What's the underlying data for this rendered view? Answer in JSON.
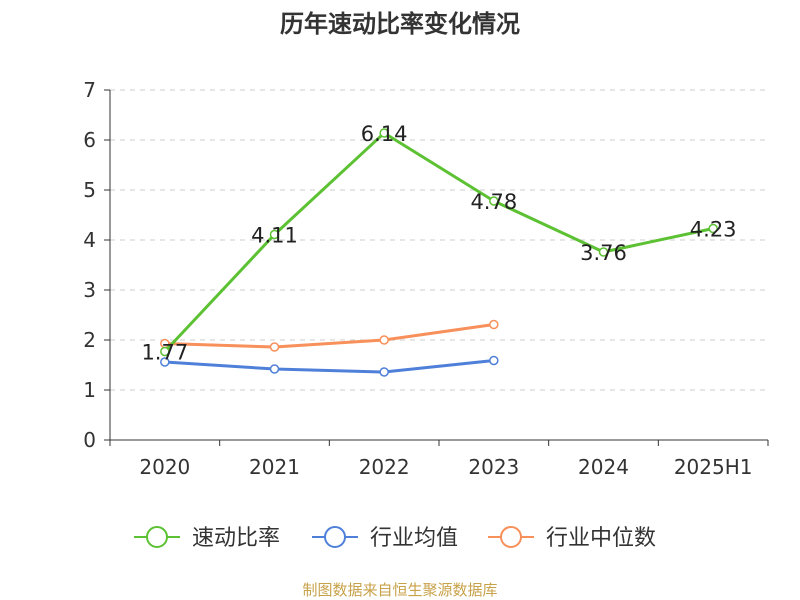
{
  "chart_data": {
    "type": "line",
    "title": "历年速动比率变化情况",
    "categories": [
      "2020",
      "2021",
      "2022",
      "2023",
      "2024",
      "2025H1"
    ],
    "ylim": [
      0,
      7
    ],
    "yticks": [
      0,
      1,
      2,
      3,
      4,
      5,
      6,
      7
    ],
    "grid": true,
    "legend_position": "bottom",
    "series": [
      {
        "name": "速动比率",
        "color": "#5cc133",
        "values": [
          1.77,
          4.11,
          6.14,
          4.78,
          3.76,
          4.23
        ],
        "labels": [
          "1.77",
          "4.11",
          "6.14",
          "4.78",
          "3.76",
          "4.23"
        ]
      },
      {
        "name": "行业均值",
        "color": "#4f80d9",
        "values": [
          1.56,
          1.42,
          1.36,
          1.59,
          null,
          null
        ]
      },
      {
        "name": "行业中位数",
        "color": "#f7905a",
        "values": [
          1.93,
          1.86,
          2.0,
          2.31,
          null,
          null
        ]
      }
    ]
  },
  "footer": {
    "source": "制图数据来自恒生聚源数据库"
  }
}
